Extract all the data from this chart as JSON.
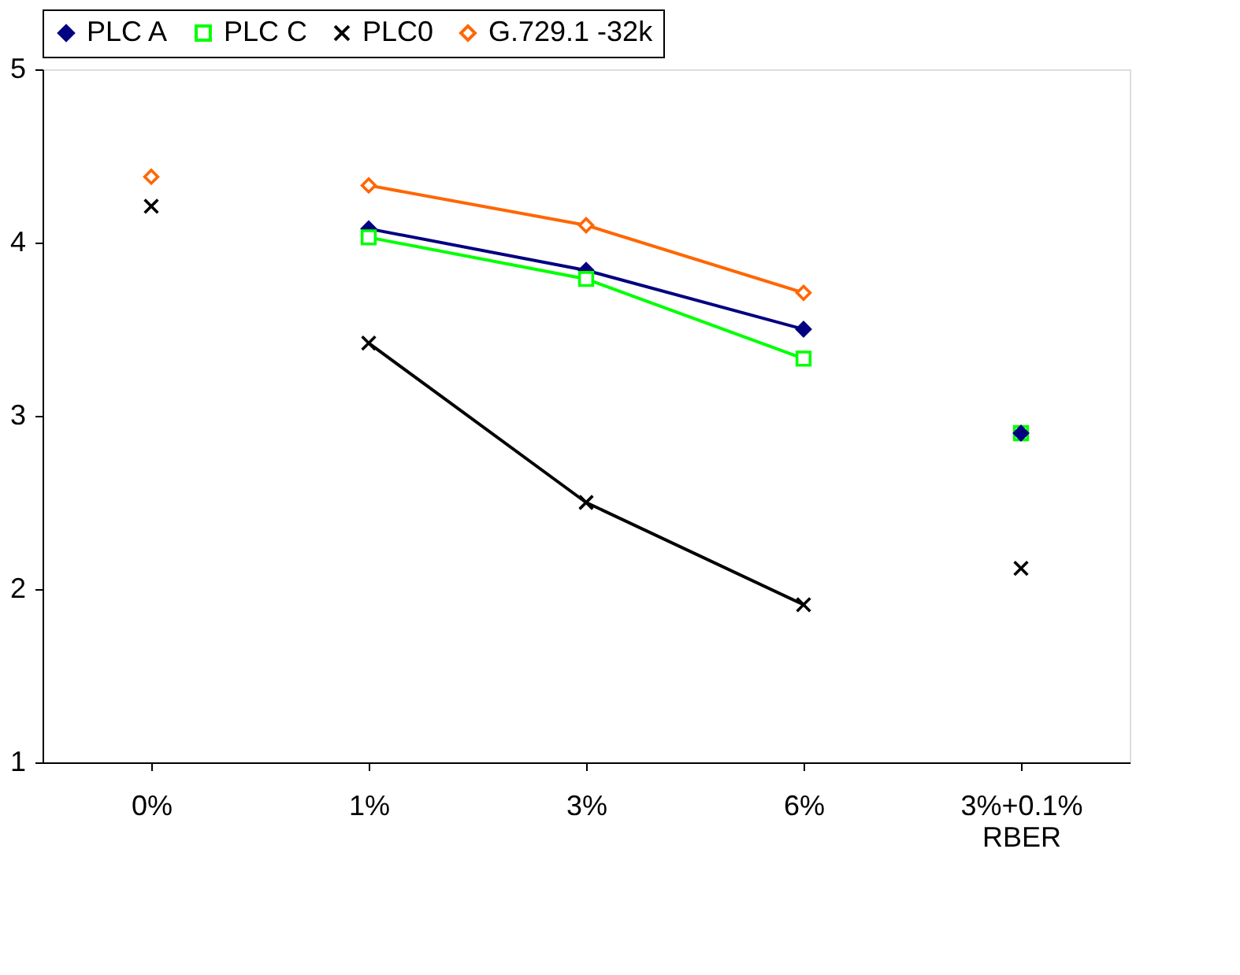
{
  "chart_data": {
    "type": "line",
    "categories": [
      "0%",
      "1%",
      "3%",
      "6%",
      "3%+0.1% RBER"
    ],
    "series": [
      {
        "name": "PLC A",
        "color": "#000080",
        "marker": "diamond",
        "values": [
          null,
          4.08,
          3.84,
          3.5,
          null
        ]
      },
      {
        "name": "PLC C",
        "color": "#00ff00",
        "marker": "square",
        "values": [
          null,
          4.03,
          3.79,
          3.33,
          null
        ]
      },
      {
        "name": "PLC0",
        "color": "#000000",
        "marker": "cross",
        "values": [
          null,
          3.42,
          2.5,
          1.91,
          null
        ]
      },
      {
        "name": "G.729.1 -32k",
        "color": "#ff6600",
        "marker": "diamond",
        "values": [
          null,
          4.33,
          4.1,
          3.71,
          null
        ]
      },
      {
        "type": "scatter",
        "color": "#00ff00",
        "marker": "square",
        "values": [
          null,
          null,
          null,
          null,
          2.9
        ]
      },
      {
        "type": "scatter",
        "color": "#000080",
        "marker": "diamond",
        "values": [
          null,
          null,
          null,
          null,
          2.9
        ]
      },
      {
        "type": "scatter",
        "color": "#000000",
        "marker": "cross",
        "values": [
          4.21,
          null,
          null,
          null,
          2.12
        ]
      },
      {
        "type": "scatter",
        "color": "#ff6600",
        "marker": "diamond",
        "values": [
          4.38,
          null,
          null,
          null,
          null
        ]
      }
    ],
    "ylim": [
      1,
      5
    ],
    "yticks": [
      1,
      2,
      3,
      4,
      5
    ],
    "grid": false,
    "legend": "top"
  }
}
